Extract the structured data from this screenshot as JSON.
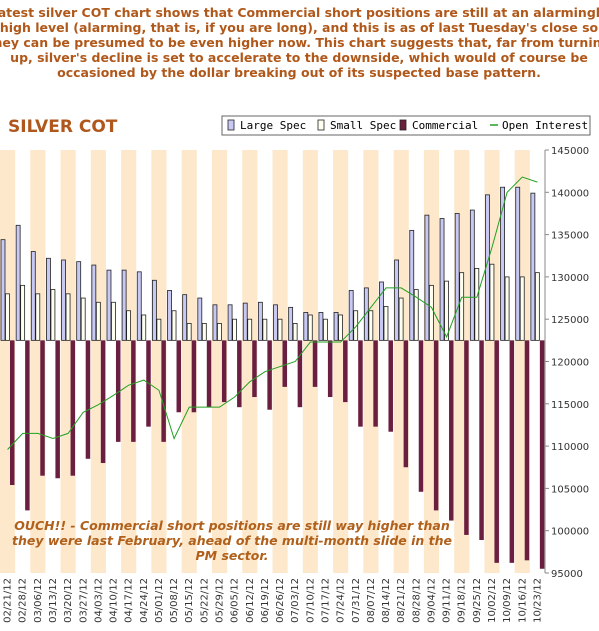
{
  "intro": [
    "Latest silver COT chart shows that Commercial short positions are still at an alarmingly",
    "high level (alarming, that is, if you are long), and this is as of last Tuesday's close so",
    "they can be presumed to be even higher now. This chart suggests that, far from turning",
    "up, silver's decline is set to accelerate to the downside, which would of course be",
    "occasioned by the dollar breaking out of its suspected base pattern."
  ],
  "chart_data": {
    "type": "bar",
    "title": "SILVER COT",
    "categories": [
      "02/21/12",
      "02/28/12",
      "03/06/12",
      "03/13/12",
      "03/20/12",
      "03/27/12",
      "04/03/12",
      "04/10/12",
      "04/17/12",
      "04/24/12",
      "05/01/12",
      "05/08/12",
      "05/15/12",
      "05/22/12",
      "05/29/12",
      "06/05/12",
      "06/12/12",
      "06/19/12",
      "06/26/12",
      "07/03/12",
      "07/10/12",
      "07/17/12",
      "07/24/12",
      "07/31/12",
      "08/07/12",
      "08/14/12",
      "08/21/12",
      "08/28/12",
      "09/04/12",
      "09/11/12",
      "09/18/12",
      "09/25/12",
      "10/02/12",
      "10/09/12",
      "10/16/12",
      "10/23/12"
    ],
    "baseline": 122500,
    "series": [
      {
        "name": "Large Spec",
        "color": "#c8c8f4",
        "values": [
          134400,
          136100,
          133000,
          132200,
          132000,
          131800,
          131400,
          130800,
          130800,
          130600,
          129600,
          128400,
          127900,
          127500,
          126700,
          126700,
          126900,
          127000,
          126700,
          126400,
          125800,
          125800,
          125800,
          128400,
          128700,
          129400,
          132000,
          135500,
          137300,
          136900,
          137500,
          137900,
          139700,
          140600,
          140600,
          139900
        ]
      },
      {
        "name": "Small Spec",
        "color": "#fffff0",
        "values": [
          128000,
          129000,
          128000,
          128500,
          128000,
          127500,
          127000,
          127000,
          126000,
          125500,
          125000,
          126000,
          124500,
          124500,
          124500,
          125000,
          125000,
          125000,
          125000,
          124500,
          125500,
          125000,
          125500,
          126000,
          126000,
          126500,
          127500,
          128500,
          129000,
          129500,
          130500,
          131000,
          131500,
          130000,
          130000,
          130500
        ]
      },
      {
        "name": "Commercial",
        "color": "#6b1f40",
        "values": [
          105400,
          102400,
          106500,
          106200,
          106500,
          108500,
          108000,
          110500,
          110500,
          112300,
          110500,
          114000,
          114000,
          114600,
          115200,
          114600,
          115800,
          114300,
          117000,
          114600,
          117000,
          115800,
          115200,
          112300,
          112300,
          111700,
          107500,
          104600,
          102400,
          101200,
          99500,
          98900,
          96200,
          96200,
          96500,
          95500
        ]
      },
      {
        "name": "Open Interest",
        "type": "line",
        "color": "#22a022",
        "values": [
          109600,
          111500,
          111500,
          110900,
          111500,
          114000,
          114900,
          116000,
          117200,
          117800,
          116600,
          110900,
          114600,
          114600,
          114600,
          115800,
          117600,
          118800,
          119400,
          120000,
          122300,
          122300,
          122300,
          124100,
          126400,
          128700,
          128700,
          127600,
          126400,
          122900,
          127600,
          127600,
          133500,
          140000,
          141800,
          141200
        ]
      }
    ],
    "ylim": [
      95000,
      145000
    ],
    "yticks": [
      95000,
      100000,
      105000,
      110000,
      115000,
      120000,
      125000,
      130000,
      135000,
      140000,
      145000
    ],
    "annotation": [
      "OUCH!! - Commercial short positions are still way higher than",
      "they were last February, ahead of the multi-month slide in the",
      "PM sector."
    ]
  }
}
